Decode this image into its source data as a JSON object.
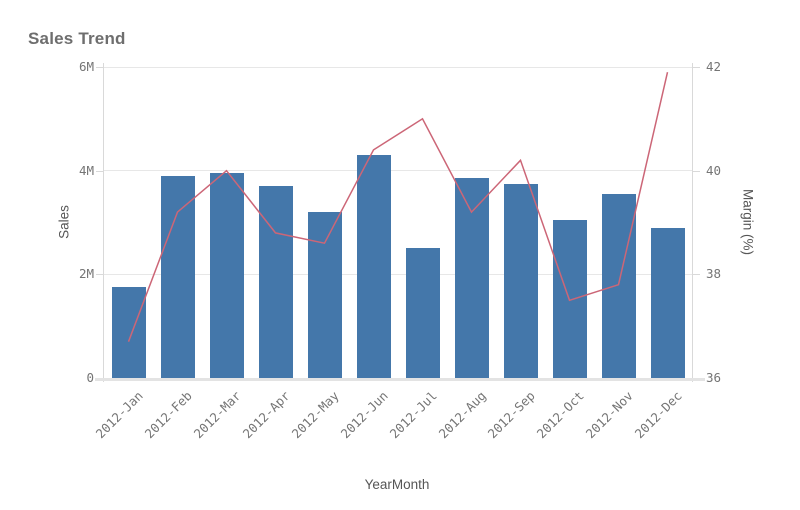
{
  "header": {
    "title": "Sales Trend"
  },
  "chart_data": {
    "type": "combo",
    "title": "Sales Trend",
    "categories": [
      "2012-Jan",
      "2012-Feb",
      "2012-Mar",
      "2012-Apr",
      "2012-May",
      "2012-Jun",
      "2012-Jul",
      "2012-Aug",
      "2012-Sep",
      "2012-Oct",
      "2012-Nov",
      "2012-Dec"
    ],
    "series": [
      {
        "name": "Sales",
        "type": "bar",
        "axis": "left",
        "unit": "millions",
        "values": [
          1.75,
          3.9,
          3.95,
          3.7,
          3.2,
          4.3,
          2.5,
          3.85,
          3.75,
          3.05,
          3.55,
          2.9
        ]
      },
      {
        "name": "Margin (%)",
        "type": "line",
        "axis": "right",
        "unit": "percent",
        "values": [
          36.7,
          39.2,
          40.0,
          38.8,
          38.6,
          40.4,
          41.0,
          39.2,
          40.2,
          37.5,
          37.8,
          41.9
        ]
      }
    ],
    "left_axis": {
      "label": "Sales",
      "min": 0,
      "max": 6,
      "unit_suffix": "M",
      "ticks": [
        {
          "label": "0",
          "value": 0
        },
        {
          "label": "2M",
          "value": 2
        },
        {
          "label": "4M",
          "value": 4
        },
        {
          "label": "6M",
          "value": 6
        }
      ]
    },
    "right_axis": {
      "label": "Margin (%)",
      "min": 36,
      "max": 42,
      "ticks": [
        {
          "label": "36",
          "value": 36
        },
        {
          "label": "38",
          "value": 38
        },
        {
          "label": "40",
          "value": 40
        },
        {
          "label": "42",
          "value": 42
        }
      ]
    },
    "x_axis": {
      "label": "YearMonth"
    },
    "legend_position": "none",
    "grid": true,
    "colors": {
      "bar": "#4477aa",
      "line": "#cc6677",
      "grid": "#e7e7e7",
      "axis_line": "#d9d9d9",
      "baseline": "#e3e3e3",
      "tick_text": "#757575",
      "axis_title_text": "#565656",
      "title_text": "#6e6e6e"
    }
  }
}
